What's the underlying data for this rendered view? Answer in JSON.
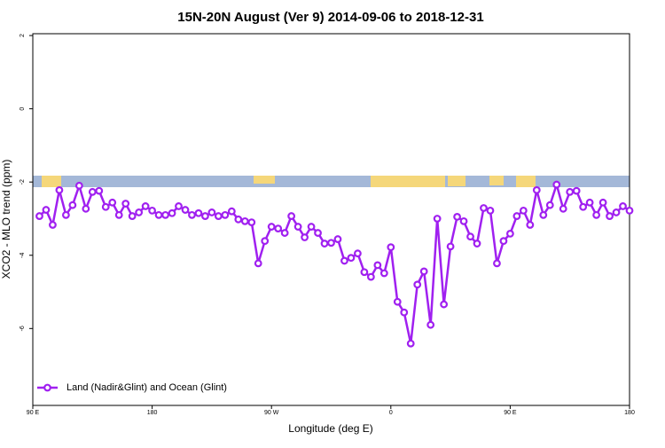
{
  "chart_data": {
    "type": "line",
    "title": "15N-20N August (Ver 9)   2014-09-06 to 2018-12-31",
    "x_label": "Longitude (deg E)",
    "y_label": "XCO2 - MLO trend (ppm)",
    "xlim": [
      90,
      540
    ],
    "xticks": [
      {
        "value": 90,
        "label": "90 E"
      },
      180,
      {
        "value": 270,
        "label": "90 W"
      },
      {
        "value": 360,
        "label": "0"
      },
      {
        "value": 450,
        "label": "90 E"
      },
      {
        "value": 540,
        "label": "180"
      }
    ],
    "ylim": [
      -8.1,
      2.05
    ],
    "yticks": [
      -6,
      -4,
      -2,
      0,
      2
    ],
    "legend": "bottom-left",
    "x": [
      95,
      100,
      105,
      110,
      115,
      120,
      125,
      130,
      135,
      140,
      145,
      150,
      155,
      160,
      165,
      170,
      175,
      180,
      185,
      190,
      195,
      200,
      205,
      210,
      215,
      220,
      225,
      230,
      235,
      240,
      245,
      250,
      255,
      260,
      265,
      270,
      275,
      280,
      285,
      290,
      295,
      300,
      305,
      310,
      315,
      320,
      325,
      330,
      335,
      340,
      345,
      350,
      355,
      360,
      365,
      370,
      375,
      380,
      385,
      390,
      395,
      400,
      405,
      410,
      415,
      420,
      425,
      430,
      435,
      440,
      445,
      450,
      455,
      460,
      465,
      470,
      475,
      480,
      485,
      490,
      495,
      500,
      505,
      510,
      515,
      520,
      525,
      530,
      535,
      540
    ],
    "series": [
      {
        "name": "Land (Nadir&Glint) and Ocean (Glint)",
        "color": "#a020f0",
        "values": [
          -2.93,
          -2.76,
          -3.17,
          -2.22,
          -2.9,
          -2.63,
          -2.1,
          -2.73,
          -2.27,
          -2.24,
          -2.68,
          -2.56,
          -2.9,
          -2.59,
          -2.93,
          -2.83,
          -2.66,
          -2.78,
          -2.9,
          -2.9,
          -2.85,
          -2.66,
          -2.76,
          -2.9,
          -2.85,
          -2.93,
          -2.83,
          -2.93,
          -2.9,
          -2.8,
          -3.02,
          -3.07,
          -3.1,
          -4.22,
          -3.61,
          -3.22,
          -3.27,
          -3.39,
          -2.93,
          -3.22,
          -3.51,
          -3.22,
          -3.39,
          -3.68,
          -3.66,
          -3.56,
          -4.15,
          -4.07,
          -3.95,
          -4.46,
          -4.59,
          -4.27,
          -4.49,
          -3.78,
          -5.27,
          -5.56,
          -6.41,
          -4.8,
          -4.44,
          -5.9,
          -3.0,
          -5.34,
          -3.76,
          -2.95,
          -3.07,
          -3.49,
          -3.68,
          -2.71,
          -2.78,
          -4.22,
          -3.61,
          -3.41,
          -2.93,
          -2.78,
          -3.17,
          -2.22,
          -2.9,
          -2.63,
          -2.07,
          -2.73,
          -2.27,
          -2.24,
          -2.68,
          -2.56,
          -2.9,
          -2.56,
          -2.93,
          -2.83,
          -2.66,
          -2.78
        ]
      }
    ]
  }
}
